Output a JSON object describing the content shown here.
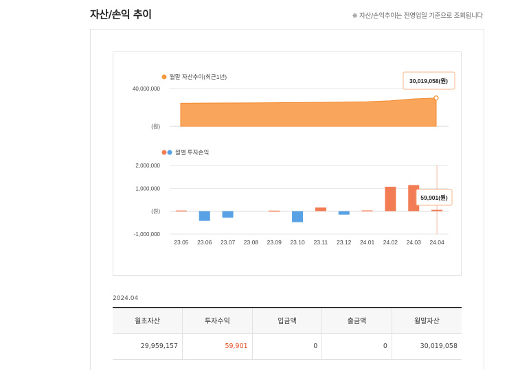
{
  "header": {
    "title": "자산/손익 추이",
    "notice": "※ 자산/손익추이는 전영업일 기준으로 조회됩니다"
  },
  "chart_data": [
    {
      "type": "area",
      "legend": "월말 자산추이(최근1년)",
      "unit_label": "(원)",
      "y_tick_labels": [
        "40,000,000"
      ],
      "y_ticks": [
        40000000
      ],
      "ylim": [
        0,
        40000000
      ],
      "categories": [
        "23.05",
        "23.06",
        "23.07",
        "23.08",
        "23.09",
        "23.10",
        "23.11",
        "23.12",
        "24.01",
        "24.02",
        "24.03",
        "24.04"
      ],
      "values": [
        24500000,
        24600000,
        24700000,
        24800000,
        25000000,
        25200000,
        25400000,
        25700000,
        26000000,
        27000000,
        29000000,
        30019058
      ],
      "tooltip": {
        "value": "30,019,058",
        "unit": "(원)"
      },
      "color": "#f9a55c"
    },
    {
      "type": "bar",
      "legend": "월별 투자손익",
      "unit_label": "(원)",
      "y_tick_labels": [
        "2,000,000",
        "1,000,000",
        "-1,000,000"
      ],
      "y_ticks": [
        2000000,
        1000000,
        -1000000
      ],
      "ylim": [
        -1000000,
        2000000
      ],
      "categories": [
        "23.05",
        "23.06",
        "23.07",
        "23.08",
        "23.09",
        "23.10",
        "23.11",
        "23.12",
        "24.01",
        "24.02",
        "24.03",
        "24.04"
      ],
      "values": [
        30000,
        -420000,
        -280000,
        0,
        25000,
        -480000,
        160000,
        -150000,
        35000,
        1070000,
        1140000,
        59901
      ],
      "tooltip": {
        "value": "59,901",
        "unit": "(원)"
      },
      "positive_color": "#f27d55",
      "negative_color": "#57a1e4"
    }
  ],
  "summary": {
    "period": "2024.04",
    "headers": [
      "월초자산",
      "투자수익",
      "입금액",
      "출금액",
      "월말자산"
    ],
    "row": [
      "29,959,157",
      "59,901",
      "0",
      "0",
      "30,019,058"
    ]
  }
}
